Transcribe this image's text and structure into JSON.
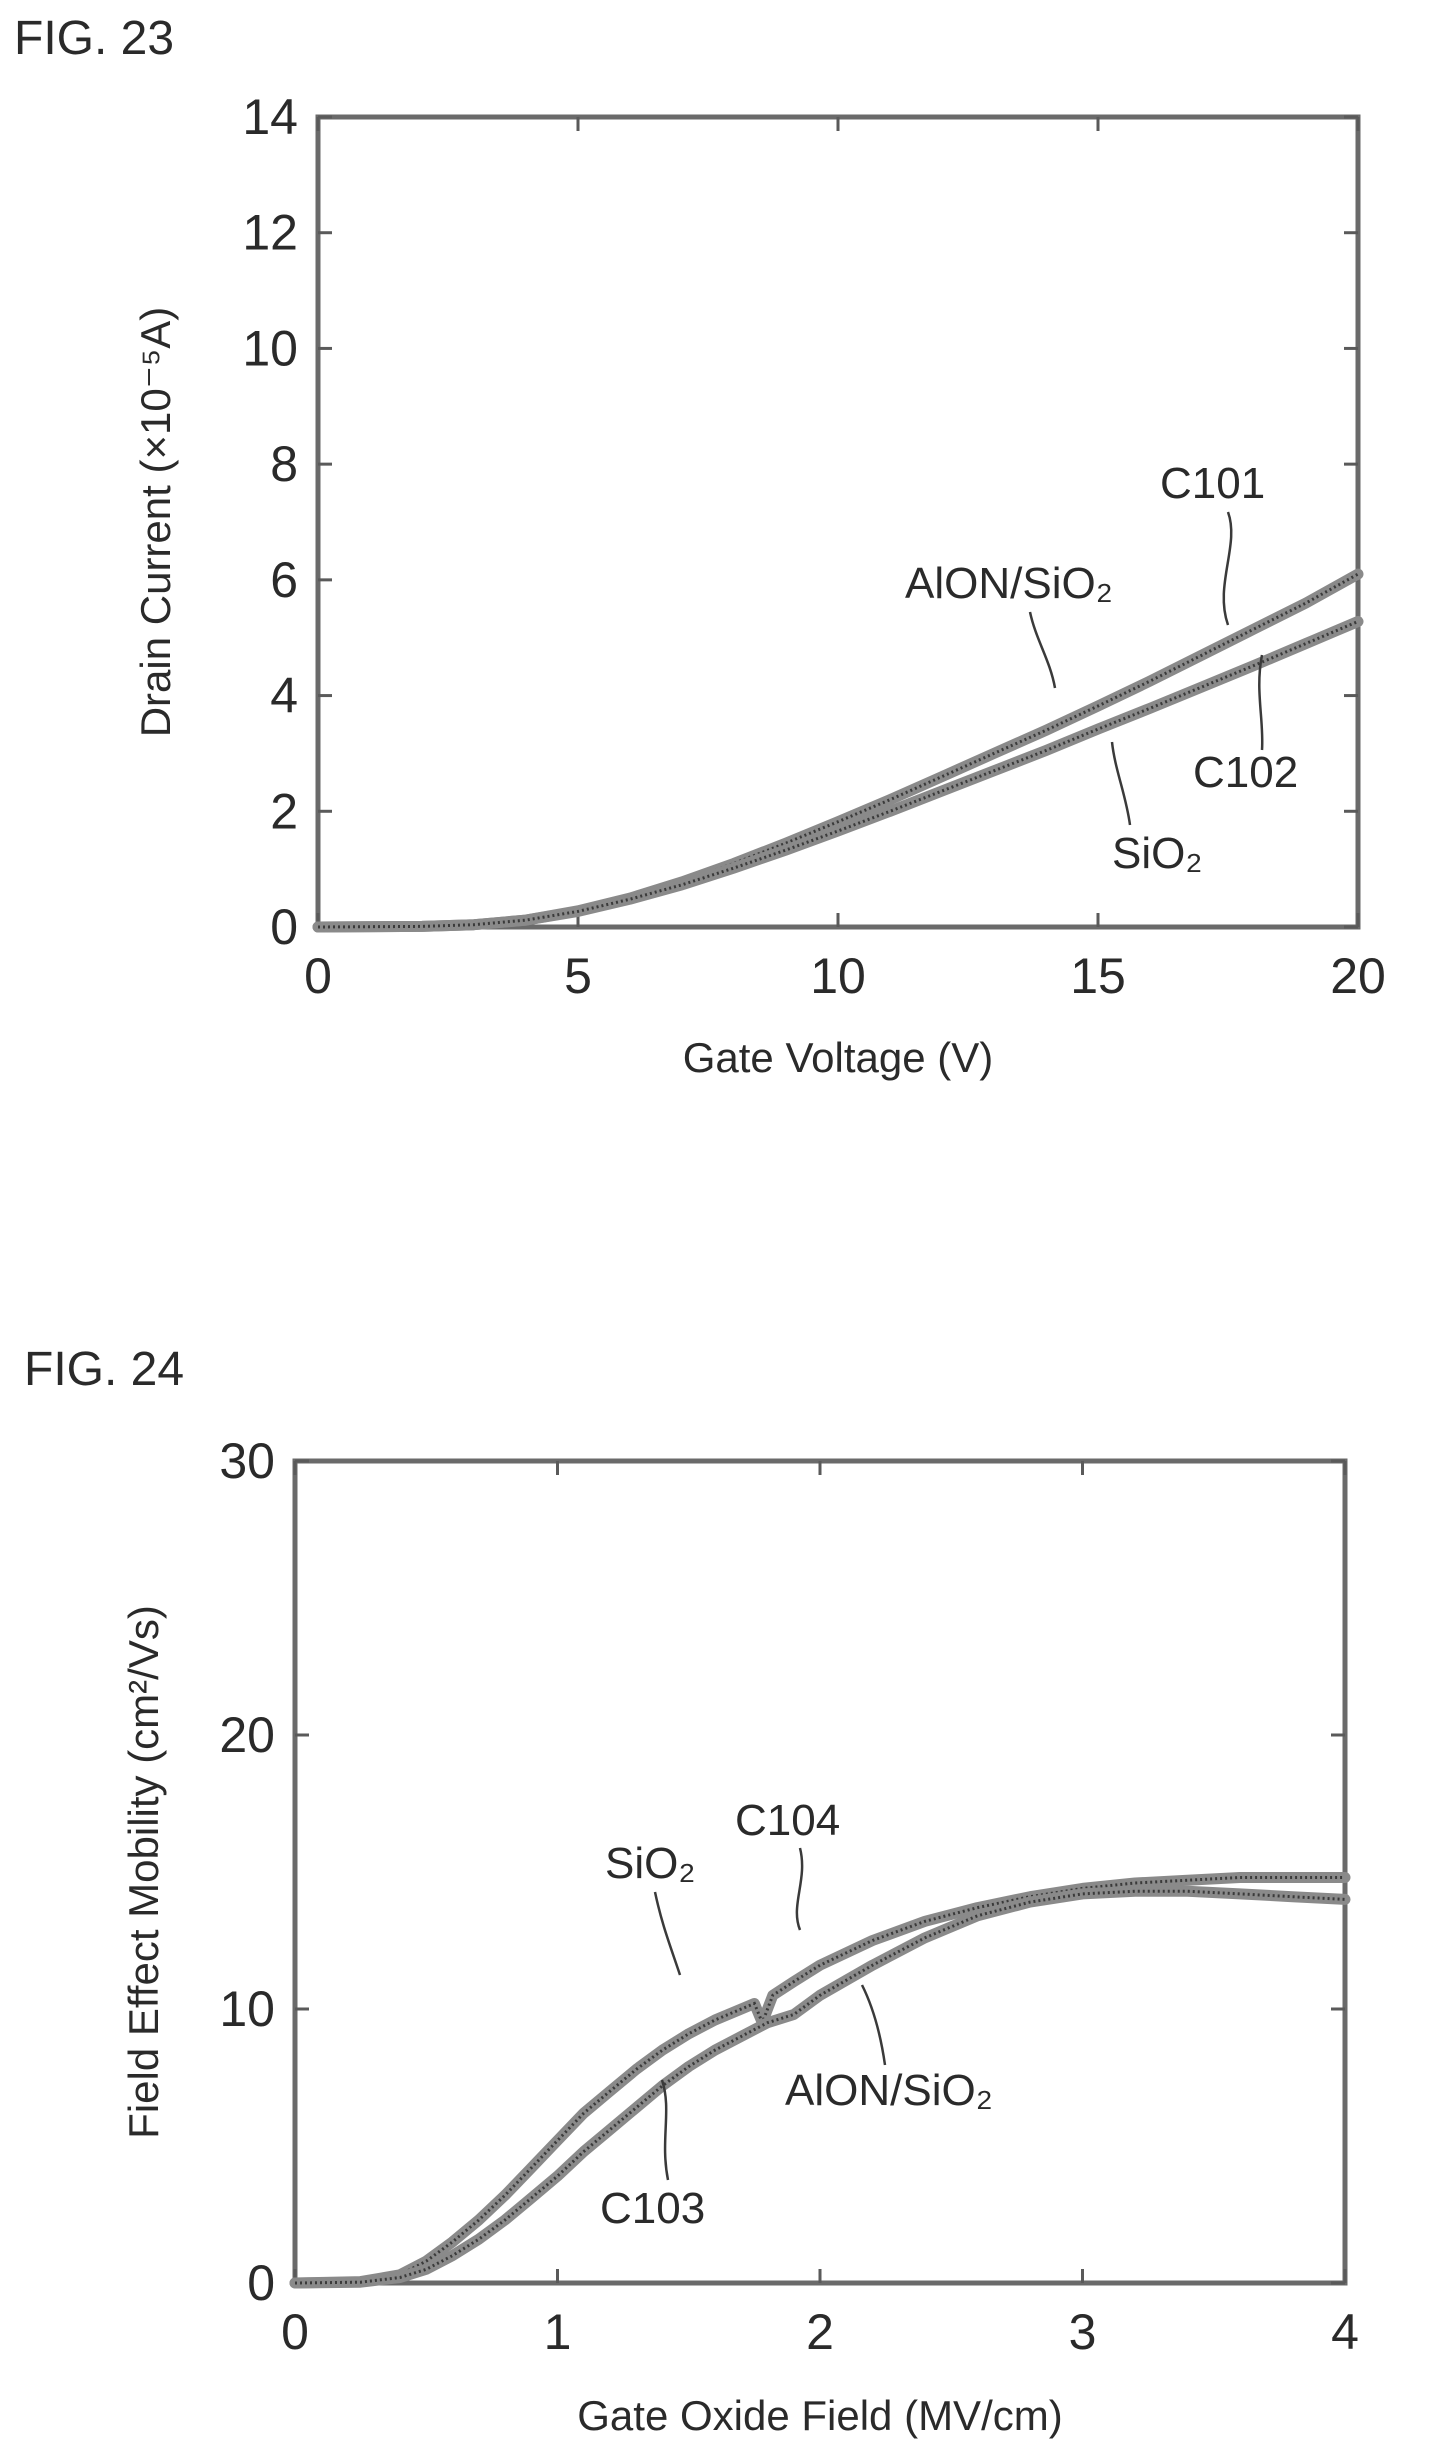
{
  "chart_data": [
    {
      "type": "line",
      "figure_label": "FIG. 23",
      "xlabel": "Gate Voltage (V)",
      "ylabel": "Drain Current (×10⁻⁵A)",
      "xlim": [
        0,
        20
      ],
      "ylim": [
        0,
        14
      ],
      "x_ticks": [
        0,
        5,
        10,
        15,
        20
      ],
      "x_tick_labels": [
        "0",
        "5",
        "10",
        "15",
        "20"
      ],
      "y_ticks": [
        0,
        2,
        4,
        6,
        8,
        10,
        12,
        14
      ],
      "y_tick_labels": [
        "0",
        "2",
        "4",
        "6",
        "8",
        "10",
        "12",
        "14"
      ],
      "grid": false,
      "series": [
        {
          "id": "C101",
          "material": "AlON/SiO₂",
          "x": [
            0,
            2,
            3,
            4,
            5,
            6,
            7,
            8,
            9,
            10,
            11,
            12,
            13,
            14,
            15,
            16,
            17,
            18,
            19,
            20
          ],
          "y": [
            0,
            0.01,
            0.04,
            0.12,
            0.28,
            0.5,
            0.78,
            1.1,
            1.45,
            1.82,
            2.2,
            2.6,
            3.0,
            3.4,
            3.82,
            4.25,
            4.7,
            5.15,
            5.6,
            6.1
          ]
        },
        {
          "id": "C102",
          "material": "SiO₂",
          "x": [
            0,
            2,
            3,
            4,
            5,
            6,
            7,
            8,
            9,
            10,
            11,
            12,
            13,
            14,
            15,
            16,
            17,
            18,
            19,
            20
          ],
          "y": [
            0,
            0.01,
            0.04,
            0.12,
            0.27,
            0.48,
            0.73,
            1.02,
            1.33,
            1.66,
            2.0,
            2.35,
            2.7,
            3.05,
            3.42,
            3.78,
            4.15,
            4.52,
            4.9,
            5.28
          ]
        }
      ],
      "annotations": [
        {
          "text": "C101",
          "target": "C101"
        },
        {
          "text": "AlON/SiO₂",
          "target": "C101"
        },
        {
          "text": "C102",
          "target": "C102"
        },
        {
          "text": "SiO₂",
          "target": "C102"
        }
      ]
    },
    {
      "type": "line",
      "figure_label": "FIG. 24",
      "xlabel": "Gate Oxide Field (MV/cm)",
      "ylabel": "Field Effect Mobility (cm²/Vs)",
      "xlim": [
        0,
        4
      ],
      "ylim": [
        0,
        30
      ],
      "x_ticks": [
        0,
        1,
        2,
        3,
        4
      ],
      "x_tick_labels": [
        "0",
        "1",
        "2",
        "3",
        "4"
      ],
      "y_ticks": [
        0,
        10,
        20,
        30
      ],
      "y_tick_labels": [
        "0",
        "10",
        "20",
        "30"
      ],
      "grid": false,
      "series": [
        {
          "id": "C104",
          "material": "SiO₂",
          "x": [
            0,
            0.25,
            0.4,
            0.5,
            0.6,
            0.7,
            0.8,
            0.9,
            1.0,
            1.1,
            1.2,
            1.3,
            1.4,
            1.5,
            1.6,
            1.7,
            1.75,
            1.78,
            1.82,
            1.9,
            2.0,
            2.2,
            2.4,
            2.6,
            2.8,
            3.0,
            3.2,
            3.4,
            3.6,
            3.8,
            4.0
          ],
          "y": [
            0,
            0.05,
            0.3,
            0.8,
            1.5,
            2.3,
            3.2,
            4.2,
            5.2,
            6.2,
            7.0,
            7.8,
            8.5,
            9.1,
            9.6,
            10.0,
            10.2,
            9.5,
            10.5,
            11.0,
            11.6,
            12.5,
            13.2,
            13.7,
            14.1,
            14.4,
            14.6,
            14.7,
            14.8,
            14.8,
            14.8
          ]
        },
        {
          "id": "C103",
          "material": "AlON/SiO₂",
          "x": [
            0,
            0.25,
            0.4,
            0.5,
            0.6,
            0.7,
            0.8,
            0.9,
            1.0,
            1.1,
            1.2,
            1.3,
            1.4,
            1.5,
            1.6,
            1.7,
            1.8,
            1.9,
            2.0,
            2.2,
            2.4,
            2.6,
            2.8,
            3.0,
            3.2,
            3.4,
            3.6,
            3.8,
            4.0
          ],
          "y": [
            0,
            0.03,
            0.2,
            0.5,
            1.0,
            1.6,
            2.3,
            3.1,
            3.9,
            4.8,
            5.6,
            6.4,
            7.2,
            7.9,
            8.5,
            9.0,
            9.5,
            9.8,
            10.5,
            11.6,
            12.6,
            13.4,
            13.9,
            14.2,
            14.3,
            14.3,
            14.2,
            14.1,
            14.0
          ]
        }
      ],
      "annotations": [
        {
          "text": "C104",
          "target": "C104"
        },
        {
          "text": "SiO₂",
          "target": "C104"
        },
        {
          "text": "C103",
          "target": "C103"
        },
        {
          "text": "AlON/SiO₂",
          "target": "C103"
        }
      ]
    }
  ]
}
